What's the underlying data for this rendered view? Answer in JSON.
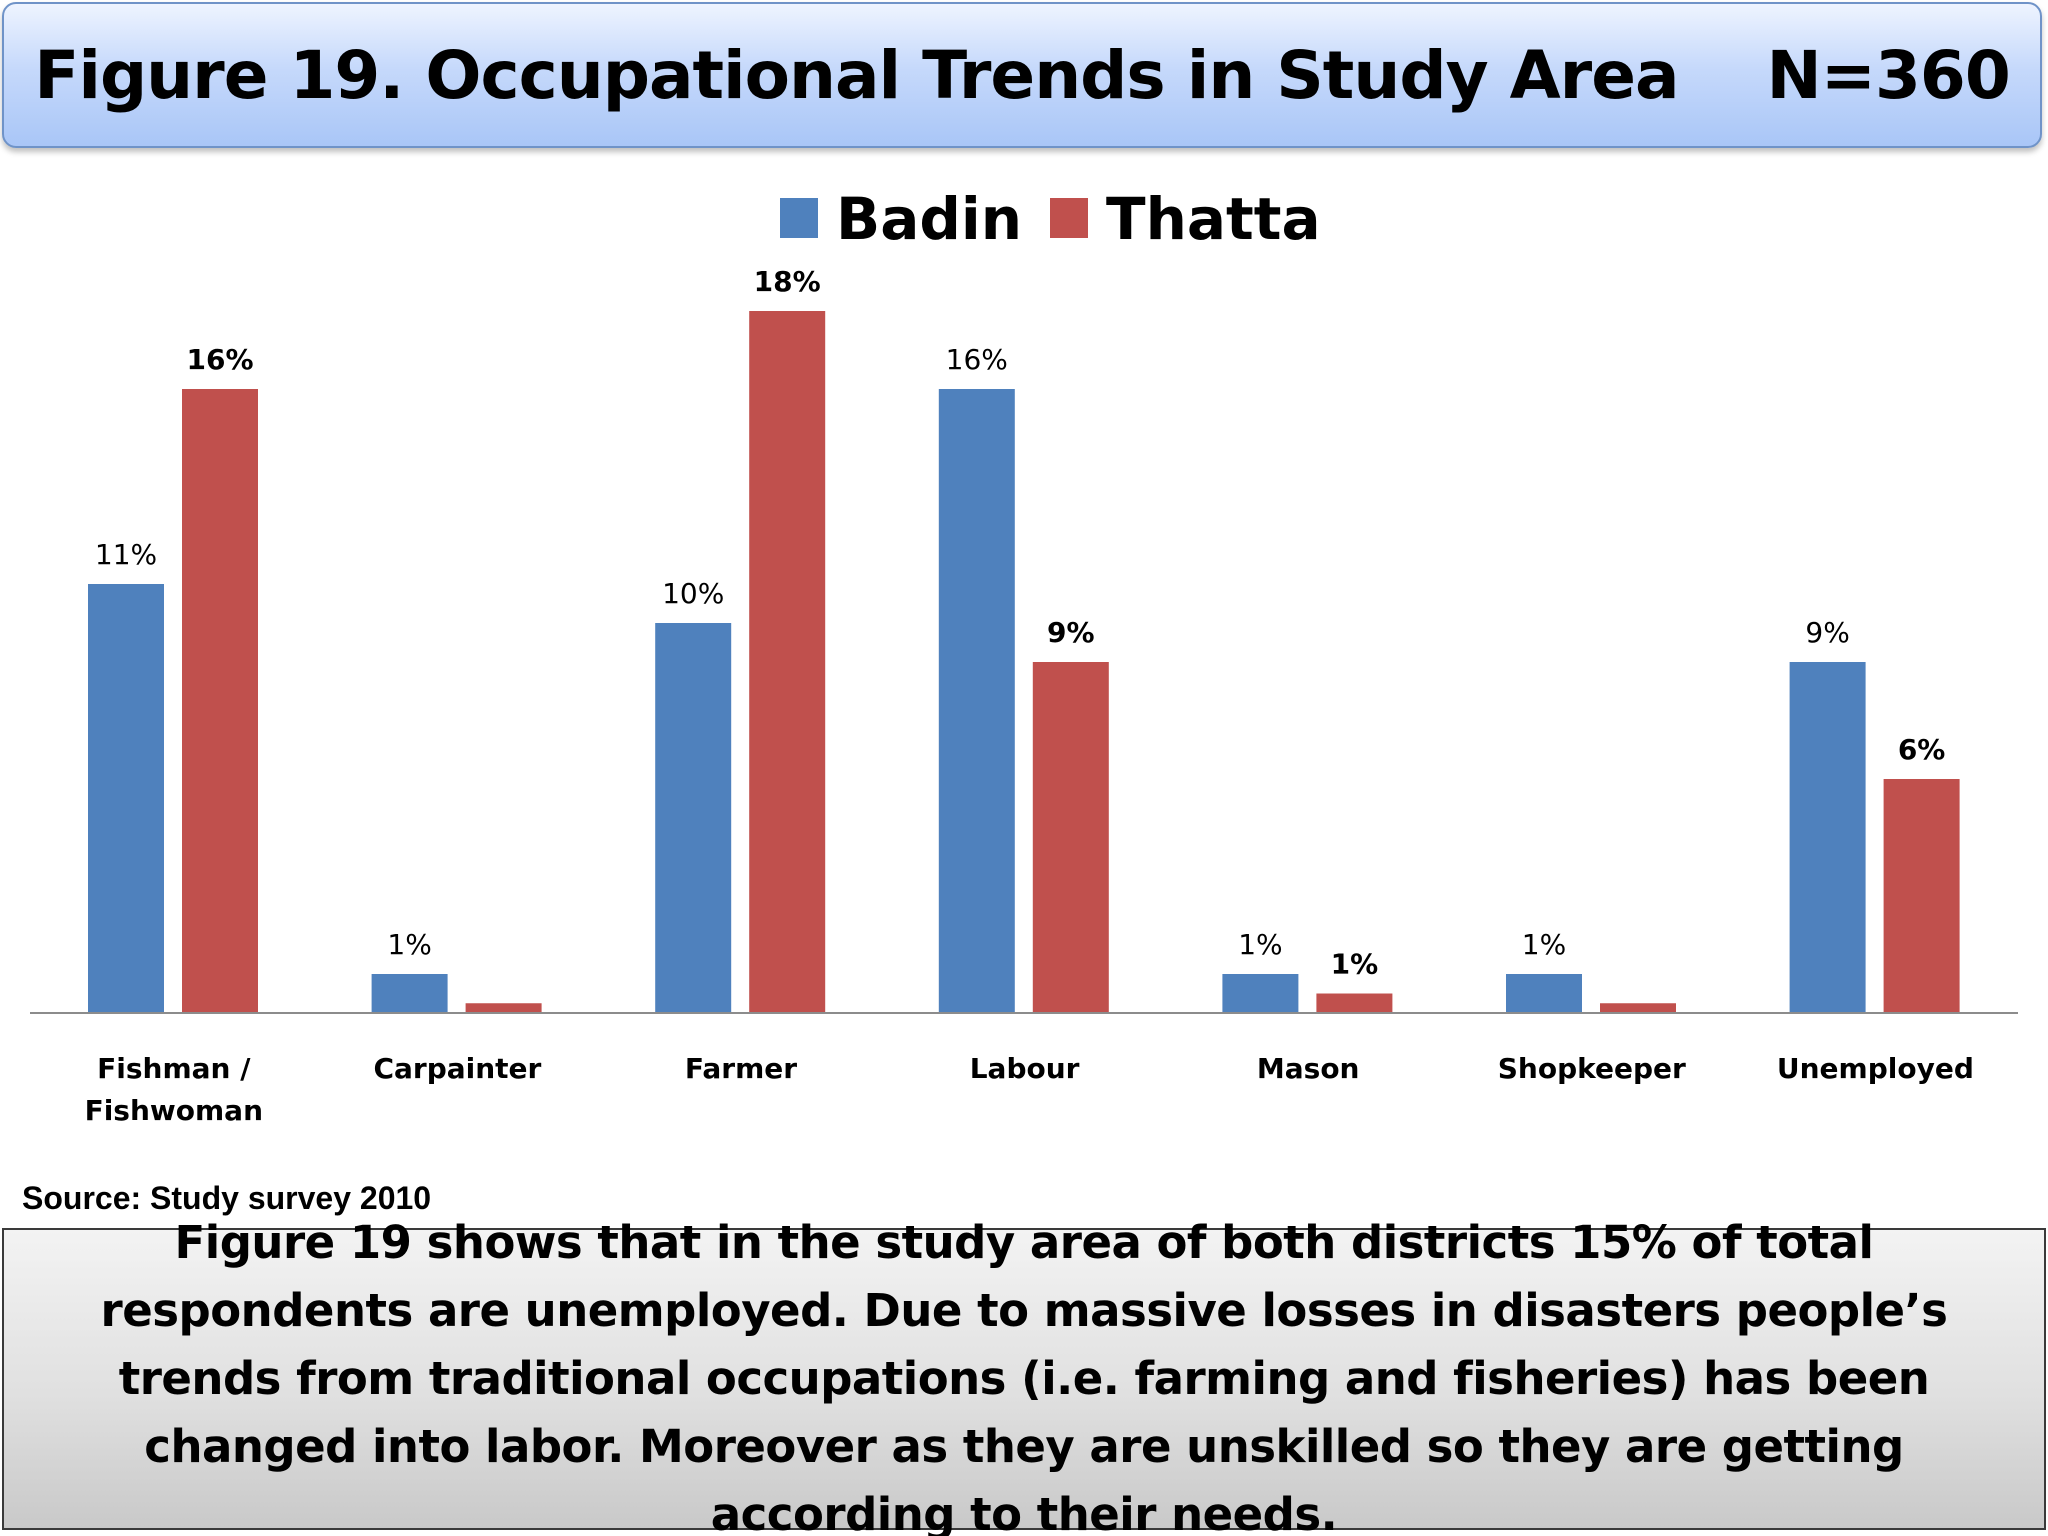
{
  "slide": {
    "title": "Figure 19. Occupational Trends in Study Area",
    "sample_size": "N=360",
    "source": "Source: Study survey 2010",
    "caption": "Figure 19 shows that in the study area of both districts 15% of total respondents are unemployed. Due to massive losses in disasters people’s trends from traditional occupations (i.e. farming and fisheries) has been changed into labor. Moreover as they are unskilled so they are getting according to their needs."
  },
  "colors": {
    "badin": "#4f81bd",
    "thatta": "#c0504d",
    "axis": "#8c8c8c"
  },
  "chart_data": {
    "type": "bar",
    "title": "",
    "xlabel": "",
    "ylabel": "",
    "ylim": [
      0,
      20
    ],
    "grid": false,
    "legend_position": "top",
    "categories": [
      [
        "Fishman /",
        "Fishwoman"
      ],
      [
        "Carpainter"
      ],
      [
        "Farmer"
      ],
      [
        "Labour"
      ],
      [
        "Mason"
      ],
      [
        "Shopkeeper"
      ],
      [
        "Unemployed"
      ]
    ],
    "series": [
      {
        "name": "Badin",
        "values": [
          11,
          1,
          10,
          16,
          1,
          1,
          9
        ],
        "labels": [
          "11%",
          "1%",
          "10%",
          "16%",
          "1%",
          "1%",
          "9%"
        ]
      },
      {
        "name": "Thatta",
        "values": [
          16,
          0.25,
          18,
          9,
          0.5,
          0.25,
          6
        ],
        "labels": [
          "16%",
          "",
          "18%",
          "9%",
          "1%",
          "",
          "6%"
        ]
      }
    ]
  }
}
